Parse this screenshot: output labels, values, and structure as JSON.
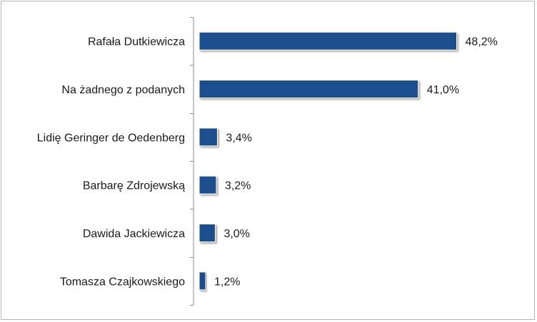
{
  "chart_data": {
    "type": "bar",
    "orientation": "horizontal",
    "categories": [
      "Rafała Dutkiewicza",
      "Na żadnego z podanych",
      "Lidię Geringer de Oedenberg",
      "Barbarę Zdrojewską",
      "Dawida Jackiewicza",
      "Tomasza Czajkowskiego"
    ],
    "values": [
      48.2,
      41.0,
      3.4,
      3.2,
      3.0,
      1.2
    ],
    "value_labels": [
      "48,2%",
      "41,0%",
      "3,4%",
      "3,2%",
      "3,0%",
      "1,2%"
    ],
    "xlim": [
      0,
      100
    ],
    "grid": false,
    "legend": "none",
    "bar_color": "#1F4E8C"
  }
}
